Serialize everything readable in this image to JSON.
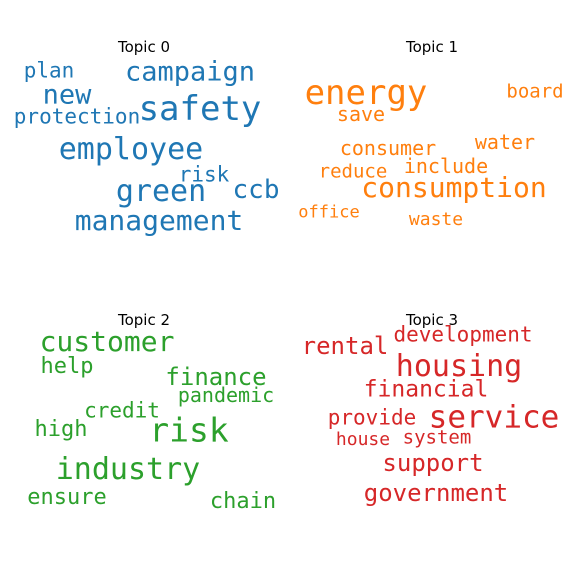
{
  "topics": [
    {
      "title": "Topic 0",
      "color": "#1f77b4",
      "words": [
        "campaign",
        "plan",
        "new",
        "safety",
        "protection",
        "employee",
        "risk",
        "green",
        "ccb",
        "management"
      ]
    },
    {
      "title": "Topic 1",
      "color": "#ff7f0e",
      "words": [
        "energy",
        "board",
        "save",
        "water",
        "consumer",
        "include",
        "reduce",
        "consumption",
        "office",
        "waste"
      ]
    },
    {
      "title": "Topic 2",
      "color": "#2ca02c",
      "words": [
        "customer",
        "help",
        "finance",
        "pandemic",
        "credit",
        "risk",
        "high",
        "industry",
        "ensure",
        "chain"
      ]
    },
    {
      "title": "Topic 3",
      "color": "#d62728",
      "words": [
        "development",
        "rental",
        "housing",
        "financial",
        "provide",
        "service",
        "house",
        "system",
        "support",
        "government"
      ]
    }
  ]
}
